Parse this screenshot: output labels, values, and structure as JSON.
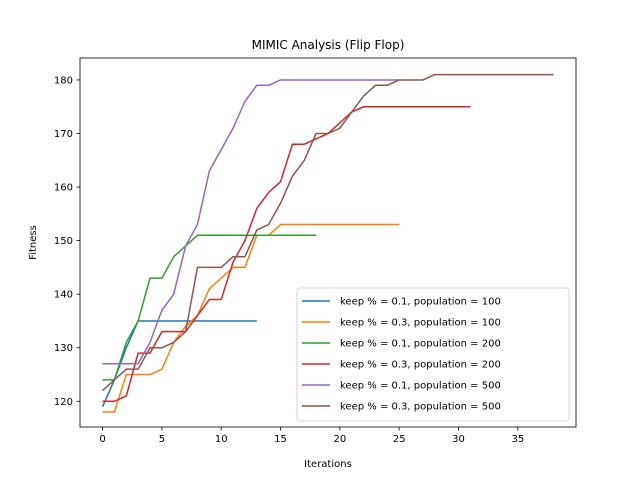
{
  "chart_data": {
    "type": "line",
    "title": "MIMIC Analysis (Flip Flop)",
    "xlabel": "Iterations",
    "ylabel": "Fitness",
    "xlim": [
      -1.9,
      39.9
    ],
    "ylim": [
      115.2,
      184.1
    ],
    "xticks": [
      0,
      5,
      10,
      15,
      20,
      25,
      30,
      35
    ],
    "yticks": [
      120,
      130,
      140,
      150,
      160,
      170,
      180
    ],
    "grid": false,
    "legend_position": "lower-right",
    "series": [
      {
        "name": "keep % = 0.1, population = 100",
        "color": "#1f77b4",
        "x": [
          0,
          1,
          2,
          3,
          4,
          5,
          6,
          7,
          8,
          9,
          10,
          11,
          12,
          13
        ],
        "y": [
          119,
          124,
          130,
          135,
          135,
          135,
          135,
          135,
          135,
          135,
          135,
          135,
          135,
          135
        ]
      },
      {
        "name": "keep % = 0.3, population = 100",
        "color": "#ff7f0e",
        "x": [
          0,
          1,
          2,
          3,
          4,
          5,
          6,
          7,
          8,
          9,
          10,
          11,
          12,
          13,
          14,
          15,
          16,
          17,
          18,
          19,
          20,
          21,
          22,
          23,
          24,
          25
        ],
        "y": [
          118,
          118,
          125,
          125,
          125,
          126,
          131,
          134,
          136,
          141,
          143,
          145,
          145,
          151,
          151,
          153,
          153,
          153,
          153,
          153,
          153,
          153,
          153,
          153,
          153,
          153
        ]
      },
      {
        "name": "keep % = 0.1, population = 200",
        "color": "#2ca02c",
        "x": [
          0,
          1,
          2,
          3,
          4,
          5,
          6,
          7,
          8,
          9,
          10,
          11,
          12,
          13,
          14,
          15,
          16,
          17,
          18
        ],
        "y": [
          124,
          124,
          131,
          135,
          143,
          143,
          147,
          149,
          151,
          151,
          151,
          151,
          151,
          151,
          151,
          151,
          151,
          151,
          151
        ]
      },
      {
        "name": "keep % = 0.3, population = 200",
        "color": "#d62728",
        "x": [
          0,
          1,
          2,
          3,
          4,
          5,
          6,
          7,
          8,
          9,
          10,
          11,
          12,
          13,
          14,
          15,
          16,
          17,
          18,
          19,
          20,
          21,
          22,
          23,
          24,
          25,
          26,
          27,
          28,
          29,
          30,
          31
        ],
        "y": [
          120,
          120,
          121,
          129,
          129,
          133,
          133,
          133,
          136,
          139,
          139,
          146,
          150,
          156,
          159,
          161,
          168,
          168,
          169,
          170,
          172,
          174,
          175,
          175,
          175,
          175,
          175,
          175,
          175,
          175,
          175,
          175
        ]
      },
      {
        "name": "keep % = 0.1, population = 500",
        "color": "#9467bd",
        "x": [
          0,
          1,
          2,
          3,
          4,
          5,
          6,
          7,
          8,
          9,
          10,
          11,
          12,
          13,
          14,
          15,
          16,
          17,
          18,
          19,
          20,
          21,
          22,
          23,
          24,
          25
        ],
        "y": [
          127,
          127,
          127,
          127,
          131,
          137,
          140,
          149,
          153,
          163,
          167,
          171,
          176,
          179,
          179,
          180,
          180,
          180,
          180,
          180,
          180,
          180,
          180,
          180,
          180,
          180
        ]
      },
      {
        "name": "keep % = 0.3, population = 500",
        "color": "#8c564b",
        "x": [
          0,
          1,
          2,
          3,
          4,
          5,
          6,
          7,
          8,
          9,
          10,
          11,
          12,
          13,
          14,
          15,
          16,
          17,
          18,
          19,
          20,
          21,
          22,
          23,
          24,
          25,
          26,
          27,
          28,
          29,
          30,
          31,
          32,
          33,
          34,
          35,
          36,
          37,
          38
        ],
        "y": [
          122,
          124,
          126,
          126,
          130,
          130,
          131,
          133,
          145,
          145,
          145,
          147,
          147,
          152,
          153,
          157,
          162,
          165,
          170,
          170,
          171,
          174,
          177,
          179,
          179,
          180,
          180,
          180,
          181,
          181,
          181,
          181,
          181,
          181,
          181,
          181,
          181,
          181,
          181
        ]
      }
    ]
  }
}
